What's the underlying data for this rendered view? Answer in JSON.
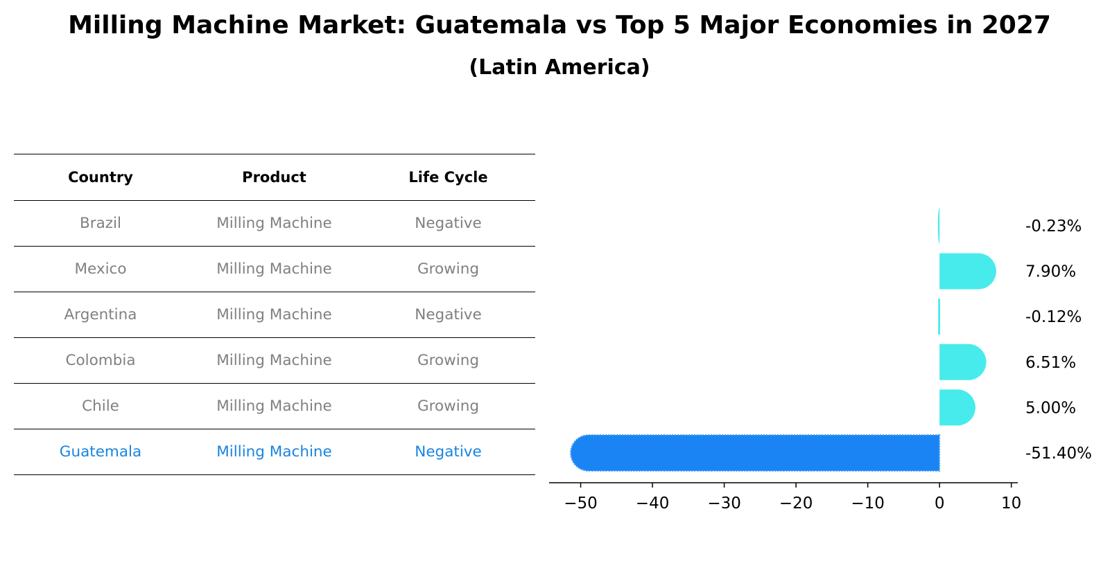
{
  "title": "Milling Machine Market: Guatemala vs Top 5 Major Economies in 2027",
  "subtitle": "(Latin America)",
  "table": {
    "headers": [
      "Country",
      "Product",
      "Life Cycle"
    ],
    "rows": [
      {
        "country": "Brazil",
        "product": "Milling Machine",
        "life_cycle": "Negative"
      },
      {
        "country": "Mexico",
        "product": "Milling Machine",
        "life_cycle": "Growing"
      },
      {
        "country": "Argentina",
        "product": "Milling Machine",
        "life_cycle": "Negative"
      },
      {
        "country": "Colombia",
        "product": "Milling Machine",
        "life_cycle": "Growing"
      },
      {
        "country": "Chile",
        "product": "Milling Machine",
        "life_cycle": "Growing"
      },
      {
        "country": "Guatemala",
        "product": "Milling Machine",
        "life_cycle": "Negative"
      }
    ]
  },
  "colors": {
    "default_bar": "#48ebec",
    "highlight_bar": "#1a84f5",
    "default_text": "#808080",
    "highlight_text": "#1a84e0"
  },
  "chart_data": {
    "type": "bar",
    "orientation": "horizontal",
    "categories": [
      "Brazil",
      "Mexico",
      "Argentina",
      "Colombia",
      "Chile",
      "Guatemala"
    ],
    "values": [
      -0.23,
      7.9,
      -0.12,
      6.51,
      5.0,
      -51.4
    ],
    "value_labels": [
      "-0.23%",
      "7.90%",
      "-0.12%",
      "6.51%",
      "5.00%",
      "-51.40%"
    ],
    "highlight": "Guatemala",
    "xlim": [
      -54.4,
      10.9
    ],
    "xticks": [
      -50,
      -40,
      -30,
      -20,
      -10,
      0,
      10
    ],
    "xtick_labels": [
      "−50",
      "−40",
      "−30",
      "−20",
      "−10",
      "0",
      "10"
    ],
    "title": "",
    "xlabel": "",
    "ylabel": ""
  }
}
